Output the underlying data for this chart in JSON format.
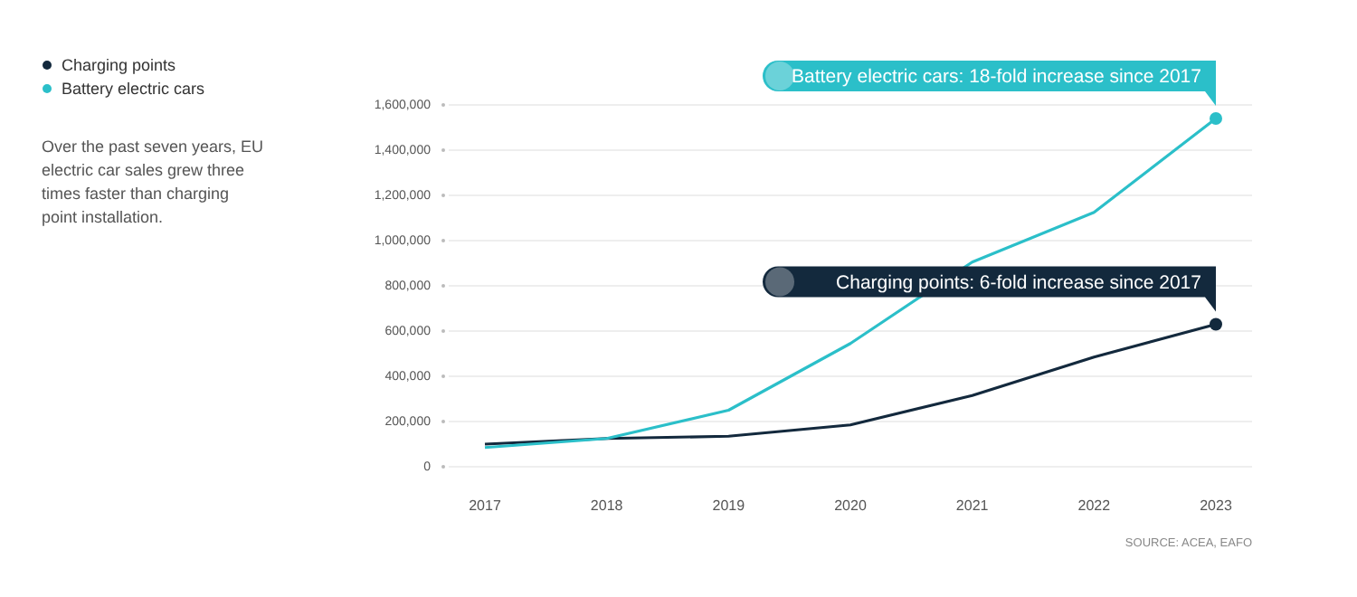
{
  "chart_data": {
    "type": "line",
    "categories": [
      "2017",
      "2018",
      "2019",
      "2020",
      "2021",
      "2022",
      "2023"
    ],
    "series": [
      {
        "name": "Charging points",
        "color": "#13293d",
        "values": [
          100000,
          125000,
          135000,
          185000,
          315000,
          485000,
          630000
        ]
      },
      {
        "name": "Battery electric cars",
        "color": "#2bbfc9",
        "values": [
          85000,
          125000,
          250000,
          545000,
          905000,
          1125000,
          1540000
        ]
      }
    ],
    "ylim": [
      0,
      1600000
    ],
    "yticks": [
      {
        "value": 0,
        "label": "0"
      },
      {
        "value": 200000,
        "label": "200,000"
      },
      {
        "value": 400000,
        "label": "400,000"
      },
      {
        "value": 600000,
        "label": "600,000"
      },
      {
        "value": 800000,
        "label": "800,000"
      },
      {
        "value": 1000000,
        "label": "1,000,000"
      },
      {
        "value": 1200000,
        "label": "1,200,000"
      },
      {
        "value": 1400000,
        "label": "1,400,000"
      },
      {
        "value": 1600000,
        "label": "1,600,000"
      }
    ],
    "grid": "y",
    "legend": "top left",
    "line_style": "solid",
    "annotations": [
      {
        "text": "Battery electric cars: 18-fold increase since 2017",
        "x": "2023",
        "y": 1540000
      },
      {
        "text": "Charging points: 6-fold increase since 2017",
        "x": "2023",
        "y": 630000
      },
      "Over the past seven years, EU electric car sales grew three times faster than charging point installation.",
      "SOURCE: ACEA, EAFO"
    ]
  }
}
